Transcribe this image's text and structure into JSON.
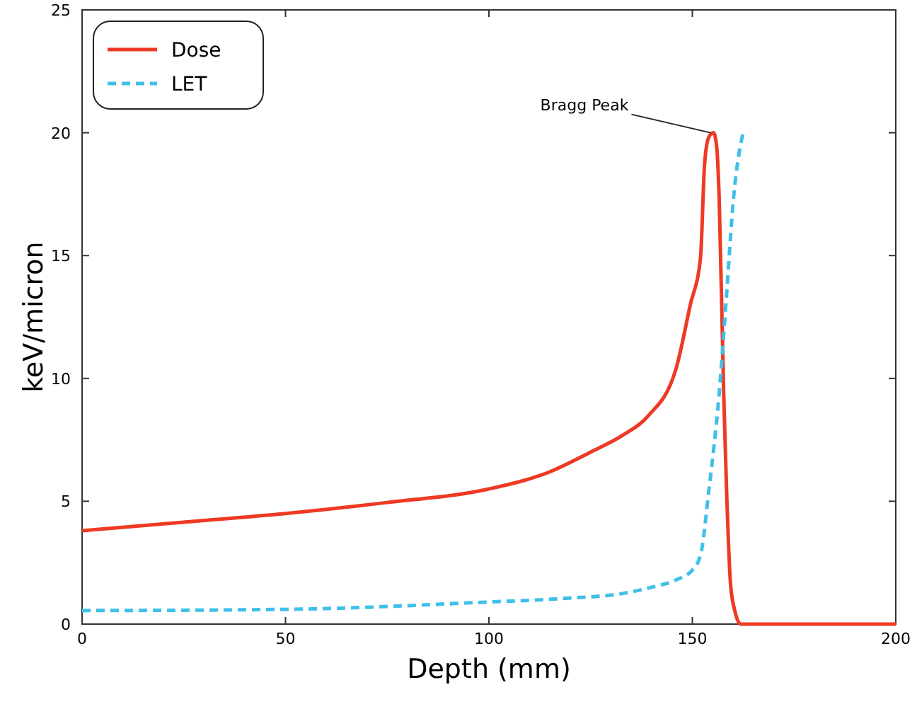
{
  "chart_data": {
    "type": "line",
    "xlabel": "Depth (mm)",
    "ylabel": "keV/micron",
    "xlim": [
      0,
      200
    ],
    "ylim": [
      0,
      25
    ],
    "xticks": [
      0,
      50,
      100,
      150,
      200
    ],
    "yticks": [
      0,
      5,
      10,
      15,
      20,
      25
    ],
    "grid": false,
    "legend": "top left",
    "annotations": [
      {
        "text": "Bragg Peak",
        "x": 155.2,
        "y": 20
      }
    ],
    "series": [
      {
        "name": "Dose",
        "color": "#ee3a24",
        "line_style": "solid",
        "x": [
          0,
          25,
          50,
          75,
          100,
          115,
          125,
          133,
          139,
          146,
          149.5,
          152,
          153,
          154,
          155.2,
          156,
          156.6,
          157.7,
          158.4,
          159.4,
          160.5,
          161.9,
          180,
          200
        ],
        "values": [
          3.8,
          4.15,
          4.5,
          4.95,
          5.5,
          6.2,
          7.0,
          7.7,
          8.45,
          10.4,
          13,
          14.9,
          18.7,
          19.8,
          20,
          19.4,
          17.3,
          9.4,
          5.5,
          1.6,
          0.5,
          0,
          0,
          0
        ]
      },
      {
        "name": "LET",
        "color": "#3fc0e8",
        "line_style": "dashed",
        "x": [
          0,
          50,
          100,
          119,
          133,
          140,
          146,
          150,
          152,
          154.1,
          156.6,
          158.4,
          160.1,
          162.6
        ],
        "values": [
          0.55,
          0.6,
          0.9,
          1.05,
          1.25,
          1.5,
          1.8,
          2.2,
          2.8,
          5.5,
          9.4,
          13.4,
          17.3,
          20.1
        ]
      }
    ]
  }
}
